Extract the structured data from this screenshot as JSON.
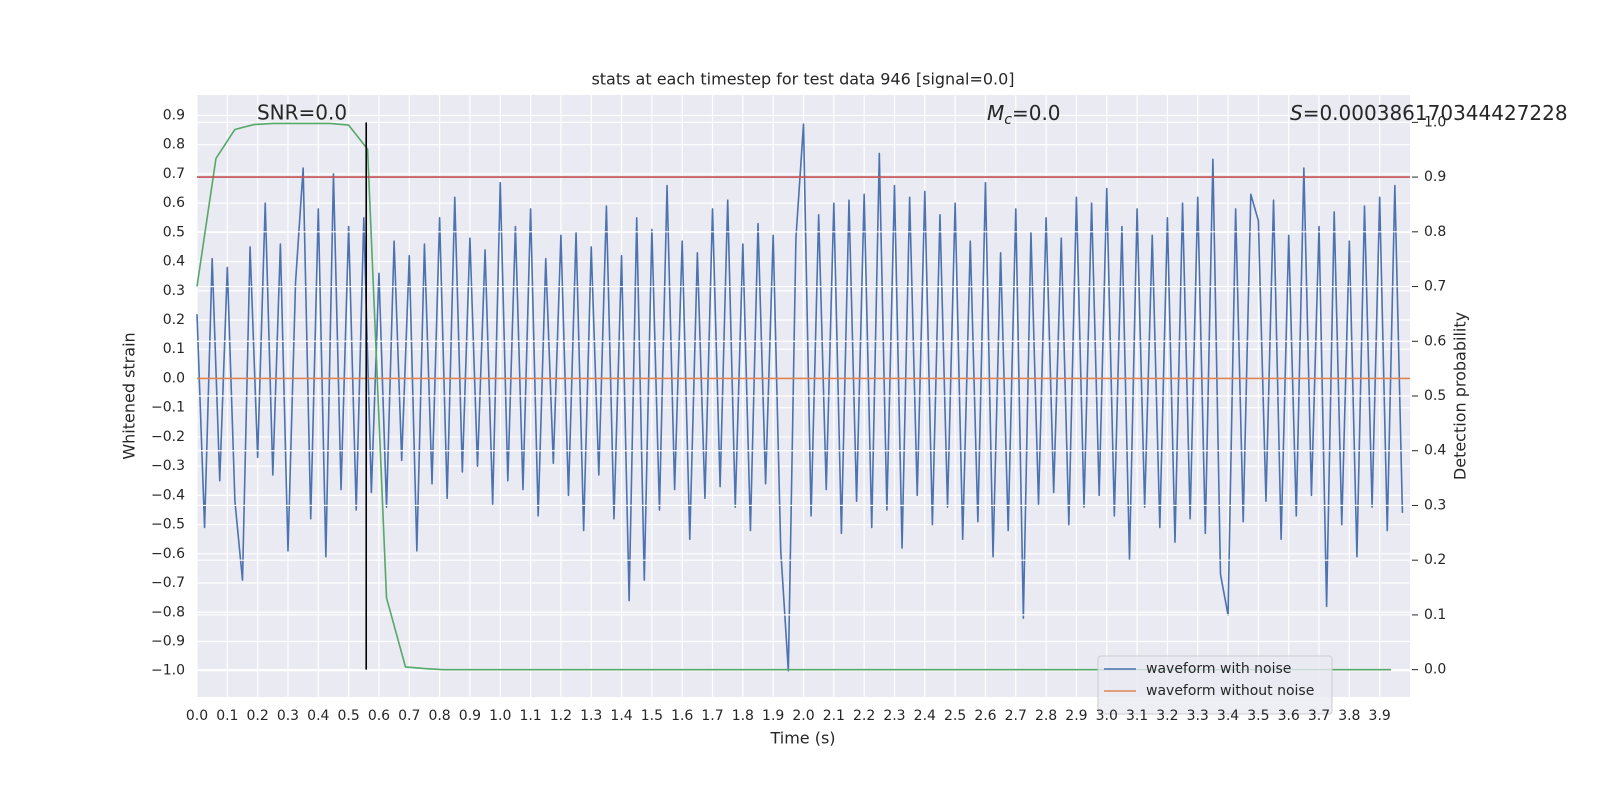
{
  "chart_data": {
    "type": "line",
    "title": "stats at each timestep for test data 946 [signal=0.0]",
    "xlabel": "Time (s)",
    "ylabel": "Whitened strain",
    "y2label": "Detection probability",
    "annotations": {
      "snr": "SNR=0.0",
      "chirp_mass": {
        "symbol": "M",
        "subscript": "c",
        "text": "=0.0"
      },
      "score": {
        "symbol": "S",
        "text": "=0.000386170344427228"
      }
    },
    "xlim": [
      0,
      4.0
    ],
    "ylim": [
      -1.09,
      0.97
    ],
    "y2lim": [
      -0.05,
      1.05
    ],
    "xticks": [
      {
        "value": 0,
        "label": "0.0"
      },
      0.1,
      0.2,
      0.3,
      0.4,
      0.5,
      0.6,
      0.7,
      0.8,
      0.9,
      {
        "value": 1,
        "label": "1.0"
      },
      1.1,
      1.2,
      1.3,
      1.4,
      1.5,
      1.6,
      1.7,
      1.8,
      1.9,
      {
        "value": 2,
        "label": "2.0"
      },
      2.1,
      2.2,
      2.3,
      2.4,
      2.5,
      2.6,
      2.7,
      2.8,
      2.9,
      {
        "value": 3,
        "label": "3.0"
      },
      3.1,
      3.2,
      3.3,
      3.4,
      3.5,
      3.6,
      3.7,
      3.8,
      3.9
    ],
    "yticks": [
      0.9,
      0.8,
      0.7,
      0.6,
      0.5,
      0.4,
      0.3,
      0.2,
      0.1,
      {
        "value": 0,
        "label": "0.0"
      },
      {
        "value": -0.1,
        "label": "−0.1"
      },
      {
        "value": -0.2,
        "label": "−0.2"
      },
      {
        "value": -0.3,
        "label": "−0.3"
      },
      {
        "value": -0.4,
        "label": "−0.4"
      },
      {
        "value": -0.5,
        "label": "−0.5"
      },
      {
        "value": -0.6,
        "label": "−0.6"
      },
      {
        "value": -0.7,
        "label": "−0.7"
      },
      {
        "value": -0.8,
        "label": "−0.8"
      },
      {
        "value": -0.9,
        "label": "−0.9"
      },
      {
        "value": -1,
        "label": "−1.0"
      }
    ],
    "y2ticks": [
      {
        "value": 0,
        "label": "0.0"
      },
      0.1,
      0.2,
      0.3,
      0.4,
      0.5,
      0.6,
      0.7,
      0.8,
      0.9,
      {
        "value": 1,
        "label": "1.0"
      }
    ],
    "grid": true,
    "legend": "lower right",
    "series": [
      {
        "name": "waveform with noise",
        "color": "#4c72b0",
        "x": [
          0,
          0.025,
          0.05,
          0.075,
          0.1,
          0.125,
          0.15,
          0.175,
          0.2,
          0.225,
          0.25,
          0.275,
          0.3,
          0.325,
          0.35,
          0.375,
          0.4,
          0.425,
          0.45,
          0.475,
          0.5,
          0.525,
          0.55,
          0.575,
          0.6,
          0.625,
          0.65,
          0.675,
          0.7,
          0.725,
          0.75,
          0.775,
          0.8,
          0.825,
          0.85,
          0.875,
          0.9,
          0.925,
          0.95,
          0.975,
          1.0,
          1.025,
          1.05,
          1.075,
          1.1,
          1.125,
          1.15,
          1.175,
          1.2,
          1.225,
          1.25,
          1.275,
          1.3,
          1.325,
          1.35,
          1.375,
          1.4,
          1.425,
          1.45,
          1.475,
          1.5,
          1.525,
          1.55,
          1.575,
          1.6,
          1.625,
          1.65,
          1.675,
          1.7,
          1.725,
          1.75,
          1.775,
          1.8,
          1.825,
          1.85,
          1.875,
          1.9,
          1.925,
          1.95,
          1.975,
          2.0,
          2.025,
          2.05,
          2.075,
          2.1,
          2.125,
          2.15,
          2.175,
          2.2,
          2.225,
          2.25,
          2.275,
          2.3,
          2.325,
          2.35,
          2.375,
          2.4,
          2.425,
          2.45,
          2.475,
          2.5,
          2.525,
          2.55,
          2.575,
          2.6,
          2.625,
          2.65,
          2.675,
          2.7,
          2.725,
          2.75,
          2.775,
          2.8,
          2.825,
          2.85,
          2.875,
          2.9,
          2.925,
          2.95,
          2.975,
          3.0,
          3.025,
          3.05,
          3.075,
          3.1,
          3.125,
          3.15,
          3.175,
          3.2,
          3.225,
          3.25,
          3.275,
          3.3,
          3.325,
          3.35,
          3.375,
          3.4,
          3.425,
          3.45,
          3.475,
          3.5,
          3.525,
          3.55,
          3.575,
          3.6,
          3.625,
          3.65,
          3.675,
          3.7,
          3.725,
          3.75,
          3.775,
          3.8,
          3.825,
          3.85,
          3.875,
          3.9,
          3.925,
          3.95,
          3.975
        ],
        "values": [
          0.22,
          -0.51,
          0.41,
          -0.35,
          0.38,
          -0.42,
          -0.69,
          0.45,
          -0.27,
          0.6,
          -0.33,
          0.46,
          -0.59,
          0.33,
          0.72,
          -0.48,
          0.58,
          -0.61,
          0.7,
          -0.38,
          0.52,
          -0.45,
          0.55,
          -0.39,
          0.36,
          -0.44,
          0.47,
          -0.28,
          0.42,
          -0.59,
          0.46,
          -0.36,
          0.55,
          -0.41,
          0.62,
          -0.32,
          0.48,
          -0.3,
          0.44,
          -0.43,
          0.67,
          -0.35,
          0.52,
          -0.38,
          0.58,
          -0.47,
          0.41,
          -0.29,
          0.49,
          -0.4,
          0.5,
          -0.52,
          0.45,
          -0.33,
          0.59,
          -0.48,
          0.42,
          -0.76,
          0.55,
          -0.69,
          0.51,
          -0.45,
          0.66,
          -0.38,
          0.47,
          -0.55,
          0.43,
          -0.41,
          0.58,
          -0.37,
          0.61,
          -0.44,
          0.46,
          -0.52,
          0.53,
          -0.36,
          0.49,
          -0.59,
          -1.0,
          0.48,
          0.87,
          -0.47,
          0.56,
          -0.38,
          0.6,
          -0.53,
          0.61,
          -0.42,
          0.63,
          -0.51,
          0.77,
          -0.45,
          0.66,
          -0.58,
          0.62,
          -0.4,
          0.64,
          -0.5,
          0.56,
          -0.44,
          0.6,
          -0.55,
          0.47,
          -0.49,
          0.67,
          -0.61,
          0.43,
          -0.52,
          0.58,
          -0.82,
          0.5,
          -0.43,
          0.55,
          -0.39,
          0.48,
          -0.5,
          0.62,
          -0.44,
          0.6,
          -0.4,
          0.65,
          -0.47,
          0.52,
          -0.62,
          0.58,
          -0.44,
          0.49,
          -0.51,
          0.55,
          -0.56,
          0.6,
          -0.48,
          0.62,
          -0.53,
          0.75,
          -0.67,
          -0.81,
          0.58,
          -0.49,
          0.63,
          0.54,
          -0.42,
          0.61,
          -0.55,
          0.49,
          -0.47,
          0.72,
          -0.4,
          0.52,
          -0.78,
          0.57,
          -0.5,
          0.47,
          -0.61,
          0.59,
          -0.44,
          0.62,
          -0.52,
          0.66,
          -0.46
        ]
      },
      {
        "name": "waveform without noise",
        "color": "#dd8452",
        "x": [
          0,
          4.0
        ],
        "values": [
          0,
          0
        ]
      },
      {
        "color": "#55a868",
        "axis": "y2",
        "x": [
          0,
          0.0625,
          0.125,
          0.1875,
          0.25,
          0.3125,
          0.375,
          0.4375,
          0.5,
          0.5625,
          0.625,
          0.6875,
          0.75,
          0.8125,
          3.9375
        ],
        "values": [
          0.7,
          0.934,
          0.987,
          0.996,
          0.998,
          0.998,
          0.998,
          0.998,
          0.995,
          0.951,
          0.131,
          0.005,
          0.002,
          0.0,
          0.0
        ]
      }
    ],
    "hlines": [
      {
        "value": 0.9,
        "axis": "y2",
        "color": "#c44e52"
      }
    ],
    "vlines": [
      {
        "value": 0.558,
        "axis": "y2",
        "ymin": 0,
        "ymax": 1,
        "color": "#000000"
      }
    ]
  }
}
